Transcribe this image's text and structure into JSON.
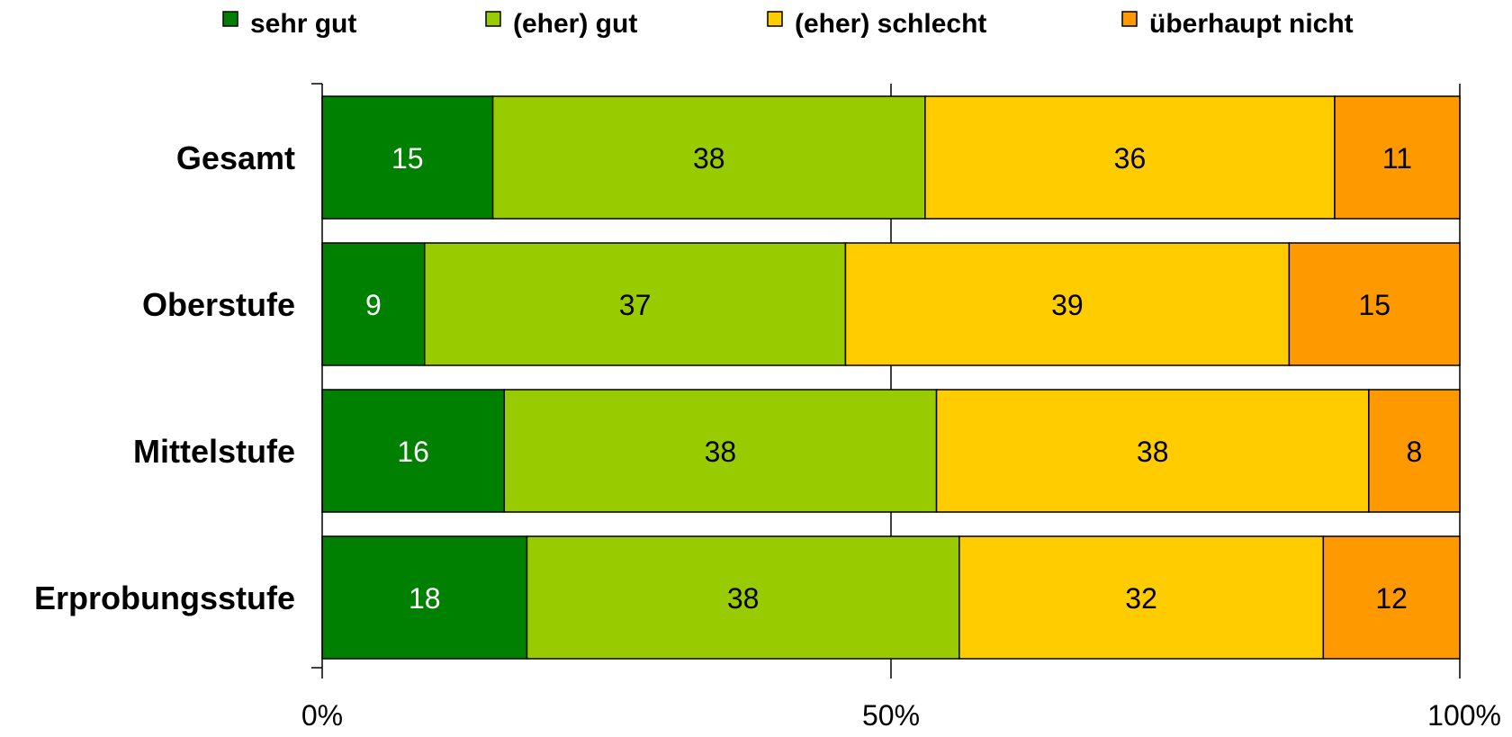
{
  "chart_data": {
    "type": "bar",
    "orientation": "horizontal",
    "stacked": true,
    "normalized": "percent",
    "title": "",
    "xlabel": "",
    "ylabel": "",
    "xlim": [
      0,
      100
    ],
    "x_ticks": [
      "0%",
      "50%",
      "100%"
    ],
    "grid": "vertical gridline at 50%",
    "legend_position": "top",
    "categories": [
      "Gesamt",
      "Oberstufe",
      "Mittelstufe",
      "Erprobungsstufe"
    ],
    "series": [
      {
        "name": "sehr gut",
        "color": "#008000",
        "label_color": "#ffffff",
        "values": [
          15,
          9,
          16,
          18
        ]
      },
      {
        "name": "(eher) gut",
        "color": "#99cc00",
        "label_color": "#000000",
        "values": [
          38,
          37,
          38,
          38
        ]
      },
      {
        "name": "(eher) schlecht",
        "color": "#ffcc00",
        "label_color": "#000000",
        "values": [
          36,
          39,
          38,
          32
        ]
      },
      {
        "name": "überhaupt nicht",
        "color": "#ff9900",
        "label_color": "#000000",
        "values": [
          11,
          15,
          8,
          12
        ]
      }
    ]
  }
}
